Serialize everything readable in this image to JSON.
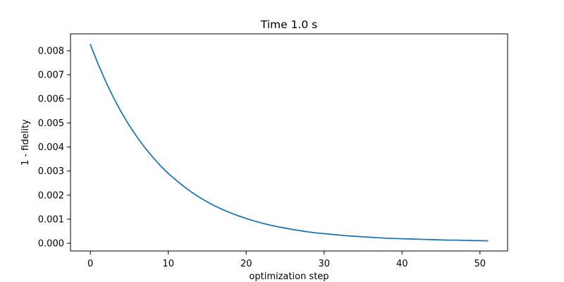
{
  "chart_data": {
    "type": "line",
    "title": "Time 1.0 s",
    "xlabel": "optimization step",
    "ylabel": "1 - fidelity",
    "xlim": [
      -2.55,
      53.55
    ],
    "ylim": [
      -0.00032,
      0.0087
    ],
    "xticks": [
      0,
      10,
      20,
      30,
      40,
      50
    ],
    "xtick_labels": [
      "0",
      "10",
      "20",
      "30",
      "40",
      "50"
    ],
    "yticks": [
      0.0,
      0.001,
      0.002,
      0.003,
      0.004,
      0.005,
      0.006,
      0.007,
      0.008
    ],
    "ytick_labels": [
      "0.000",
      "0.001",
      "0.002",
      "0.003",
      "0.004",
      "0.005",
      "0.006",
      "0.007",
      "0.008"
    ],
    "grid": false,
    "series_color": "#1f77b4",
    "series": [
      {
        "x": [
          0,
          1,
          2,
          3,
          4,
          5,
          6,
          7,
          8,
          9,
          10,
          11,
          12,
          13,
          14,
          15,
          16,
          17,
          18,
          19,
          20,
          21,
          22,
          23,
          24,
          25,
          26,
          27,
          28,
          29,
          30,
          31,
          32,
          33,
          34,
          35,
          36,
          37,
          38,
          39,
          40,
          41,
          42,
          43,
          44,
          45,
          46,
          47,
          48,
          49,
          50,
          51
        ],
        "values": [
          0.00826,
          0.00744,
          0.0067,
          0.00603,
          0.00543,
          0.00489,
          0.00441,
          0.00397,
          0.00358,
          0.00322,
          0.0029,
          0.00262,
          0.00236,
          0.00212,
          0.00191,
          0.00172,
          0.00155,
          0.0014,
          0.00126,
          0.00114,
          0.00103,
          0.00093,
          0.00084,
          0.00076,
          0.00069,
          0.00063,
          0.00057,
          0.00052,
          0.00047,
          0.00043,
          0.0004,
          0.00037,
          0.00034,
          0.00031,
          0.00029,
          0.00027,
          0.00025,
          0.00023,
          0.00021,
          0.0002,
          0.00019,
          0.00018,
          0.00017,
          0.00016,
          0.00015,
          0.00014,
          0.00013,
          0.00013,
          0.00012,
          0.00011,
          0.00011,
          0.0001
        ]
      }
    ]
  }
}
